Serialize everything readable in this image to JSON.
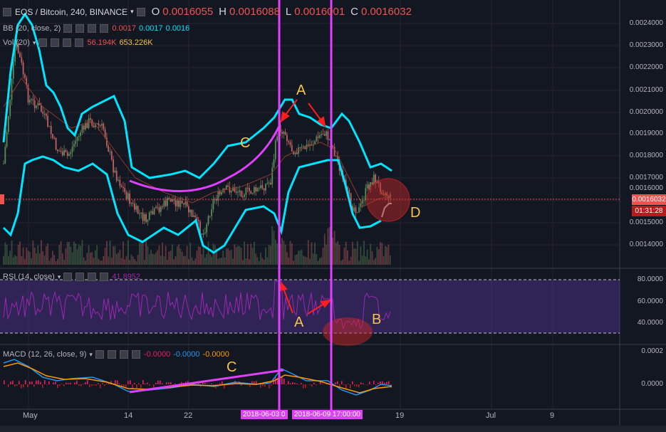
{
  "header": {
    "symbol": "EOS / Bitcoin, 240, BINANCE",
    "o_label": "O",
    "o_value": "0.0016055",
    "h_label": "H",
    "h_value": "0.0016088",
    "l_label": "L",
    "l_value": "0.0016001",
    "c_label": "C",
    "c_value": "0.0016032"
  },
  "indicators": {
    "bb": {
      "label": "BB (20, close, 2)",
      "v1": "0.0017",
      "v2": "0.0017",
      "v3": "0.0016"
    },
    "vol": {
      "label": "Vol (20)",
      "v1": "56.194K",
      "v2": "653.226K"
    },
    "rsi": {
      "label": "RSI (14, close)",
      "value": "41.8952"
    },
    "macd": {
      "label": "MACD (12, 26, close, 9)",
      "v1": "-0.0000",
      "v2": "-0.0000",
      "v3": "-0.0000"
    }
  },
  "price_axis": {
    "labels": [
      "0.0024000",
      "0.0023000",
      "0.0022000",
      "0.0021000",
      "0.0020000",
      "0.0019000",
      "0.0018000",
      "0.0017000",
      "0.0016000",
      "0.0015000",
      "0.0014000"
    ],
    "current_price": "0.0016032",
    "countdown": "01:31:28"
  },
  "rsi_axis": {
    "labels": [
      "80.0000",
      "60.0000",
      "40.0000"
    ]
  },
  "macd_axis": {
    "labels": [
      "0.0002",
      "0.0000"
    ]
  },
  "time_axis": {
    "labels": [
      "May",
      "14",
      "22",
      "19",
      "Jul",
      "9"
    ],
    "badge_1": "2018-06-03 0",
    "badge_2": "2018-06-09 17:00:00"
  },
  "annotations": {
    "a_top": "A",
    "c_top": "C",
    "d": "D",
    "a_rsi": "A",
    "b_rsi": "B",
    "c_macd": "C"
  },
  "colors": {
    "background": "#131722",
    "bb_band": "#00e5ff",
    "magenta": "#e040fb",
    "annotation": "#f5c24c",
    "arrow": "#ff1e1e",
    "candle_up": "#5a8a5a",
    "candle_down": "#c06060",
    "rsi": "#9c27b0"
  }
}
